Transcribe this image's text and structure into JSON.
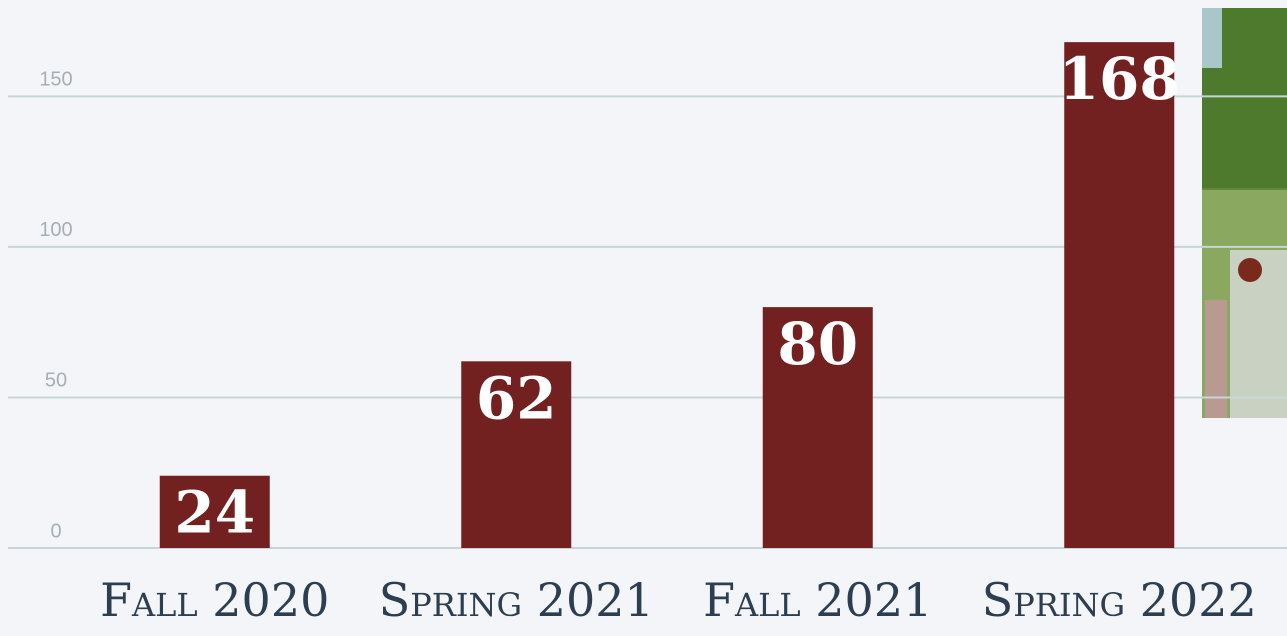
{
  "chart_data": {
    "type": "bar",
    "categories": [
      "Fall 2020",
      "Spring 2021",
      "Fall 2021",
      "Spring 2022"
    ],
    "values": [
      24,
      62,
      80,
      168
    ],
    "color": "#722020",
    "ylim": [
      0,
      182
    ],
    "yticks": [
      0,
      50,
      100,
      150
    ],
    "grid": true
  }
}
